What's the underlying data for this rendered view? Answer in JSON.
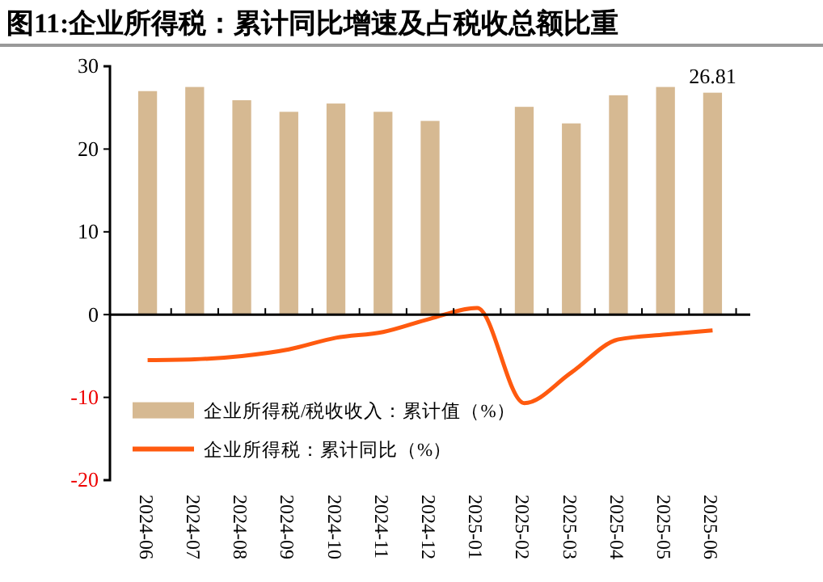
{
  "chart_data": {
    "type": "bar",
    "title": "图11:企业所得税：累计同比增速及占税收总额比重",
    "categories": [
      "2024-06",
      "2024-07",
      "2024-08",
      "2024-09",
      "2024-10",
      "2024-11",
      "2024-12",
      "2025-01",
      "2025-02",
      "2025-03",
      "2025-04",
      "2025-05",
      "2025-06"
    ],
    "series": [
      {
        "name": "企业所得税/税收收入：累计值（%）",
        "type": "bar",
        "color": "#d6b992",
        "values": [
          27.0,
          27.5,
          25.9,
          24.5,
          25.5,
          24.5,
          23.4,
          null,
          25.1,
          23.1,
          26.5,
          27.5,
          26.81
        ],
        "value_labels": [
          null,
          null,
          null,
          null,
          null,
          null,
          null,
          null,
          null,
          null,
          null,
          null,
          "26.81"
        ]
      },
      {
        "name": "企业所得税：累计同比（%）",
        "type": "line",
        "color": "#ff5a0f",
        "values": [
          -5.5,
          -5.4,
          -5.0,
          -4.2,
          -2.8,
          -2.1,
          -0.5,
          0.8,
          -10.7,
          -7.0,
          -3.0,
          -2.4,
          -1.9
        ]
      }
    ],
    "ylim": [
      -20,
      30
    ],
    "yticks": [
      -20,
      -10,
      0,
      10,
      20,
      30
    ],
    "legend": "bottom left",
    "marker": "none",
    "line_style": "solid"
  }
}
